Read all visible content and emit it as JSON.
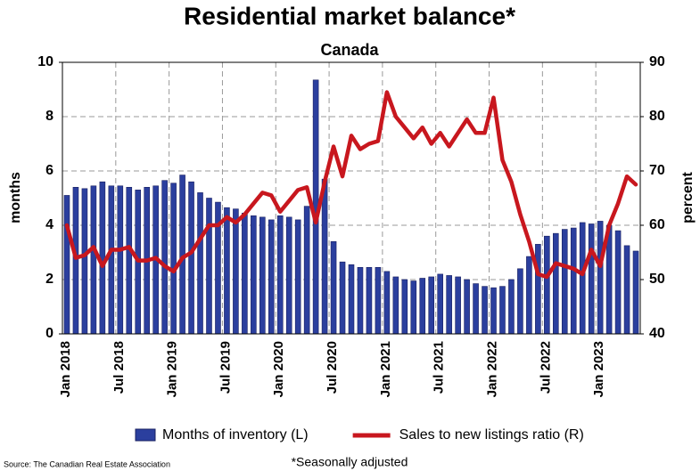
{
  "chart_data": {
    "type": "bar_line",
    "title": "Residential market balance*",
    "subtitle": "Canada",
    "ylabel": "months",
    "y2label": "percent",
    "source": "Source: The Canadian Real Estate Association",
    "footnote": "*Seasonally adjusted",
    "categories": [
      "Jan 2018",
      null,
      null,
      null,
      null,
      null,
      "Jul 2018",
      null,
      null,
      null,
      null,
      null,
      "Jan 2019",
      null,
      null,
      null,
      null,
      null,
      "Jul 2019",
      null,
      null,
      null,
      null,
      null,
      "Jan 2020",
      null,
      null,
      null,
      null,
      null,
      "Jul 2020",
      null,
      null,
      null,
      null,
      null,
      "Jan 2021",
      null,
      null,
      null,
      null,
      null,
      "Jul 2021",
      null,
      null,
      null,
      null,
      null,
      "Jan 2022",
      null,
      null,
      null,
      null,
      null,
      "Jul 2022",
      null,
      null,
      null,
      null,
      null,
      "Jan 2023",
      null,
      null,
      null,
      null
    ],
    "series": [
      {
        "name": "Months of inventory (L)",
        "color": "#2b3f9e",
        "kind": "bar",
        "values": [
          5.1,
          5.4,
          5.35,
          5.45,
          5.6,
          5.45,
          5.45,
          5.4,
          5.3,
          5.4,
          5.45,
          5.65,
          5.55,
          5.85,
          5.6,
          5.2,
          5.0,
          4.85,
          4.65,
          4.6,
          4.45,
          4.35,
          4.3,
          4.2,
          4.35,
          4.3,
          4.2,
          4.7,
          9.35,
          5.7,
          3.4,
          2.65,
          2.55,
          2.45,
          2.45,
          2.45,
          2.3,
          2.1,
          2.0,
          1.95,
          2.05,
          2.1,
          2.2,
          2.15,
          2.1,
          2.0,
          1.85,
          1.75,
          1.7,
          1.75,
          2.0,
          2.4,
          2.85,
          3.3,
          3.6,
          3.7,
          3.85,
          3.9,
          4.1,
          4.05,
          4.15,
          4.0,
          3.8,
          3.25,
          3.05
        ]
      },
      {
        "name": "Sales to new listings ratio (R)",
        "color": "#c8171e",
        "kind": "line",
        "axis": "y2",
        "values": [
          60,
          54,
          54.5,
          56,
          52.5,
          55.5,
          55.5,
          56,
          53.5,
          53.5,
          54,
          52.5,
          51.5,
          54,
          55,
          57.5,
          60,
          60,
          61.5,
          60.5,
          62,
          64,
          66,
          65.5,
          62.5,
          64.5,
          66.5,
          67,
          60.5,
          68,
          74.5,
          69,
          76.5,
          74,
          75,
          75.5,
          84.5,
          80,
          78,
          76,
          78,
          75,
          77,
          74.5,
          77,
          79.5,
          77,
          77,
          83.5,
          72,
          68,
          62,
          57,
          51,
          50.5,
          53,
          52.5,
          52,
          51,
          55.5,
          52.5,
          60,
          64,
          69,
          67.5
        ]
      }
    ],
    "ylim": [
      0,
      10
    ],
    "yticks": [
      0,
      2,
      4,
      6,
      8,
      10
    ],
    "y2lim": [
      40,
      90
    ],
    "y2ticks": [
      40,
      50,
      60,
      70,
      80,
      90
    ],
    "grid": true,
    "legend": "bottom"
  }
}
